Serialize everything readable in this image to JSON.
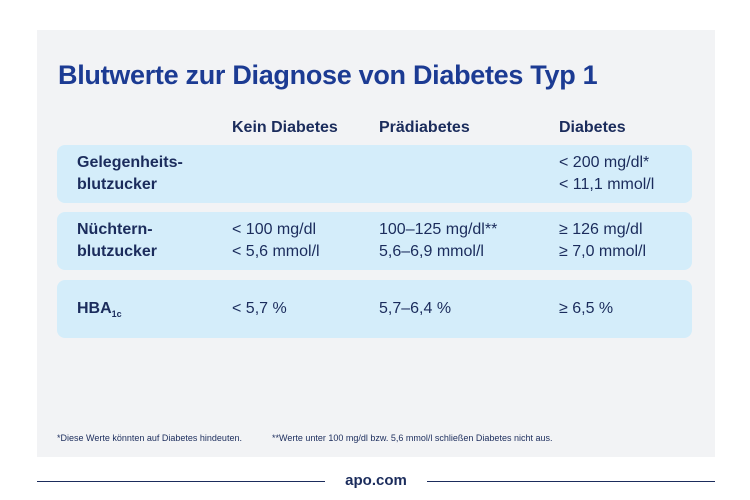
{
  "title": "Blutwerte zur Diagnose von Diabetes Typ 1",
  "table": {
    "header": [
      "Kein Diabetes",
      "Prädiabetes",
      "Diabetes"
    ],
    "rows": [
      {
        "label": [
          "Gelegenheits-",
          "blutzucker"
        ],
        "cells": [
          [],
          [],
          [
            "< 200 mg/dl*",
            "< 11,1 mmol/l"
          ]
        ]
      },
      {
        "label": [
          "Nüchtern-",
          "blutzucker"
        ],
        "cells": [
          [
            "< 100 mg/dl",
            "< 5,6 mmol/l"
          ],
          [
            "100–125 mg/dl**",
            "5,6–6,9 mmol/l"
          ],
          [
            "≥ 126 mg/dl",
            "≥ 7,0 mmol/l"
          ]
        ]
      },
      {
        "label": [
          "HBA"
        ],
        "sub": "1c",
        "cells": [
          [
            "< 5,7 %"
          ],
          [
            "5,7–6,4 %"
          ],
          [
            "≥ 6,5 %"
          ]
        ]
      }
    ]
  },
  "footnotes": [
    "*Diese Werte könnten auf Diabetes hindeuten.",
    "**Werte unter 100 mg/dl bzw. 5,6 mmol/l schließen Diabetes nicht aus."
  ],
  "footer": "apo.com"
}
